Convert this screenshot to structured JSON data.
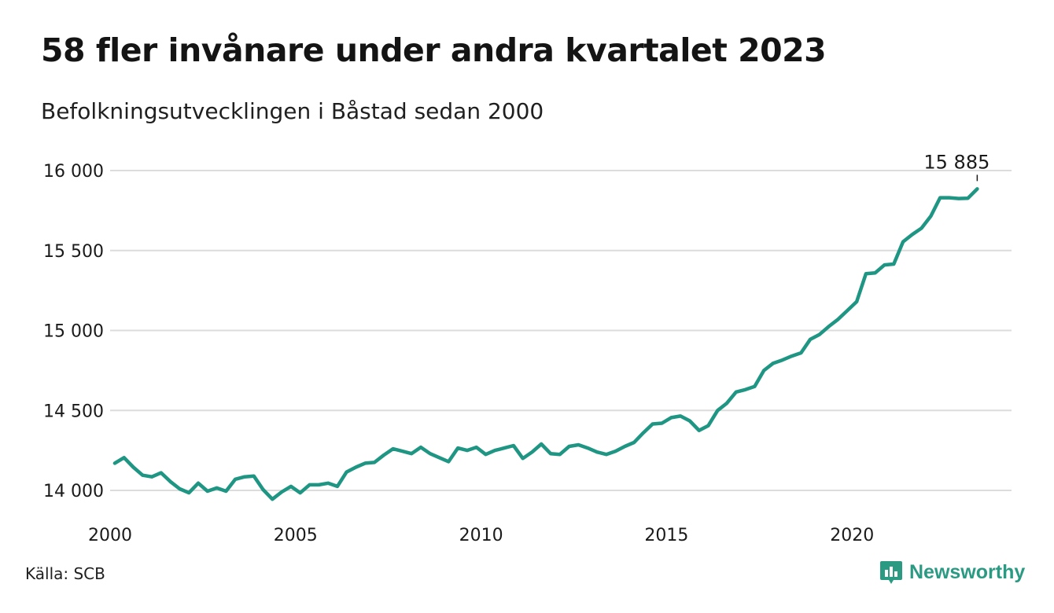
{
  "header": {
    "title": "58 fler invånare under andra kvartalet 2023",
    "subtitle": "Befolkningsutvecklingen i Båstad sedan 2000"
  },
  "footer": {
    "source": "Källa: SCB",
    "brand": "Newsworthy",
    "brand_icon": "bar-chart-logo-icon"
  },
  "colors": {
    "line": "#1f9583",
    "grid": "#dcdcdc",
    "text": "#1a1a1a",
    "brand": "#2a9a83"
  },
  "chart_data": {
    "type": "line",
    "title": "58 fler invånare under andra kvartalet 2023",
    "subtitle": "Befolkningsutvecklingen i Båstad sedan 2000",
    "xlabel": "",
    "ylabel": "",
    "x_ticks": [
      2000,
      2005,
      2010,
      2015,
      2020
    ],
    "x_tick_labels": [
      "2000",
      "2005",
      "2010",
      "2015",
      "2020"
    ],
    "y_ticks": [
      14000,
      14500,
      15000,
      15500,
      16000
    ],
    "y_tick_labels": [
      "14 000",
      "14 500",
      "15 000",
      "15 500",
      "16 000"
    ],
    "xlim": [
      2000,
      2024.3
    ],
    "ylim": [
      13920,
      16000
    ],
    "grid": true,
    "legend": "none",
    "annotation": {
      "label": "15 885",
      "x": 2023.375,
      "y": 15885
    },
    "series": [
      {
        "x": [
          2000.125,
          2000.375,
          2000.625,
          2000.875,
          2001.125,
          2001.375,
          2001.625,
          2001.875,
          2002.125,
          2002.375,
          2002.625,
          2002.875,
          2003.125,
          2003.375,
          2003.625,
          2003.875,
          2004.125,
          2004.375,
          2004.625,
          2004.875,
          2005.125,
          2005.375,
          2005.625,
          2005.875,
          2006.125,
          2006.375,
          2006.625,
          2006.875,
          2007.125,
          2007.375,
          2007.625,
          2007.875,
          2008.125,
          2008.375,
          2008.625,
          2008.875,
          2009.125,
          2009.375,
          2009.625,
          2009.875,
          2010.125,
          2010.375,
          2010.625,
          2010.875,
          2011.125,
          2011.375,
          2011.625,
          2011.875,
          2012.125,
          2012.375,
          2012.625,
          2012.875,
          2013.125,
          2013.375,
          2013.625,
          2013.875,
          2014.125,
          2014.375,
          2014.625,
          2014.875,
          2015.125,
          2015.375,
          2015.625,
          2015.875,
          2016.125,
          2016.375,
          2016.625,
          2016.875,
          2017.125,
          2017.375,
          2017.625,
          2017.875,
          2018.125,
          2018.375,
          2018.625,
          2018.875,
          2019.125,
          2019.375,
          2019.625,
          2019.875,
          2020.125,
          2020.375,
          2020.625,
          2020.875,
          2021.125,
          2021.375,
          2021.625,
          2021.875,
          2022.125,
          2022.375,
          2022.625,
          2022.875,
          2023.125,
          2023.375
        ],
        "values": [
          14170,
          14205,
          14145,
          14095,
          14085,
          14110,
          14055,
          14010,
          13985,
          14045,
          13995,
          14015,
          13995,
          14070,
          14085,
          14090,
          14005,
          13945,
          13990,
          14025,
          13985,
          14035,
          14035,
          14045,
          14025,
          14115,
          14145,
          14170,
          14175,
          14220,
          14260,
          14245,
          14230,
          14270,
          14230,
          14205,
          14180,
          14265,
          14250,
          14270,
          14225,
          14250,
          14265,
          14280,
          14200,
          14240,
          14290,
          14230,
          14225,
          14275,
          14285,
          14265,
          14240,
          14225,
          14245,
          14275,
          14300,
          14360,
          14415,
          14420,
          14455,
          14465,
          14435,
          14375,
          14405,
          14500,
          14545,
          14615,
          14630,
          14650,
          14750,
          14795,
          14815,
          14840,
          14860,
          14945,
          14975,
          15025,
          15070,
          15125,
          15180,
          15355,
          15360,
          15410,
          15415,
          15555,
          15600,
          15640,
          15715,
          15830,
          15830,
          15825,
          15827,
          15885
        ]
      }
    ]
  }
}
